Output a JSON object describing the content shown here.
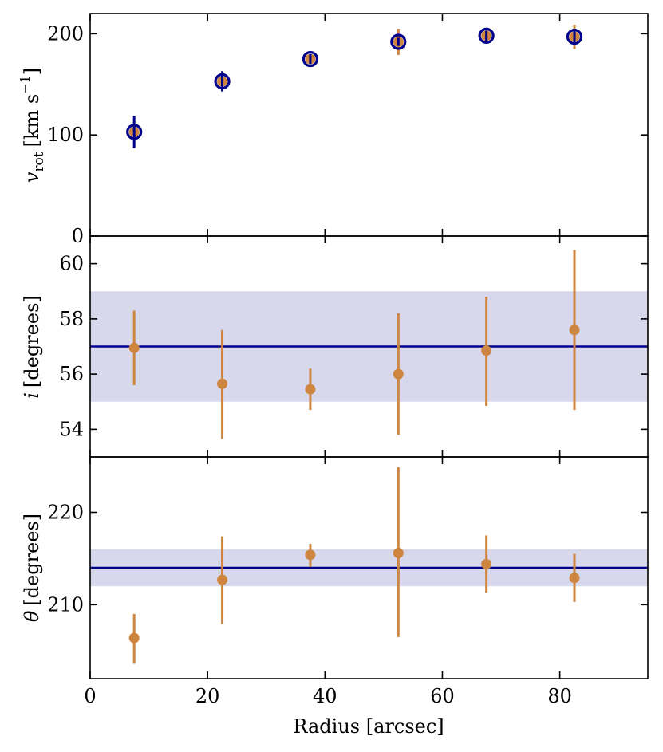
{
  "colors": {
    "model": "#00008b",
    "data": "#cd853f",
    "band": "#d8d8ec",
    "axes": "#000000"
  },
  "chart_data": [
    {
      "type": "scatter",
      "title": "",
      "ylabel": {
        "symbol": "v",
        "subscript": "rot",
        "units": "[km s",
        "superscript": "−1",
        "close": "]"
      },
      "xlim": [
        0,
        95
      ],
      "ylim": [
        0,
        220
      ],
      "yticks": [
        0,
        100,
        200
      ],
      "ytick_labels": [
        "0",
        "100",
        "200"
      ],
      "xticks": [
        0,
        20,
        40,
        60,
        80
      ],
      "grid": false,
      "series": [
        {
          "style": "filled-circle-errorbar",
          "color": "#cd853f",
          "points": [
            {
              "x": 7.5,
              "y": 103,
              "err": 10
            },
            {
              "x": 22.5,
              "y": 153,
              "err": 7
            },
            {
              "x": 37.5,
              "y": 175,
              "err": 4
            },
            {
              "x": 52.5,
              "y": 192,
              "err": 13
            },
            {
              "x": 67.5,
              "y": 198,
              "err": 6
            },
            {
              "x": 82.5,
              "y": 197,
              "err": 12
            }
          ]
        },
        {
          "style": "open-circle-errorbar",
          "color": "#00008b",
          "points": [
            {
              "x": 7.5,
              "y": 103,
              "err": 16
            },
            {
              "x": 22.5,
              "y": 153,
              "err": 10
            },
            {
              "x": 37.5,
              "y": 175,
              "err": 5
            },
            {
              "x": 52.5,
              "y": 192,
              "err": 4
            },
            {
              "x": 67.5,
              "y": 198,
              "err": 5
            },
            {
              "x": 82.5,
              "y": 197,
              "err": 8
            }
          ]
        }
      ]
    },
    {
      "type": "scatter",
      "title": "",
      "ylabel": {
        "symbol": "i",
        "units": "[degrees]"
      },
      "xlim": [
        0,
        95
      ],
      "ylim": [
        53,
        61
      ],
      "yticks": [
        54,
        56,
        58,
        60
      ],
      "ytick_labels": [
        "54",
        "56",
        "58",
        "60"
      ],
      "xticks": [
        0,
        20,
        40,
        60,
        80
      ],
      "grid": false,
      "reference_line": {
        "y": 57,
        "color": "#00008b"
      },
      "band": {
        "y_low": 55,
        "y_high": 59
      },
      "series": [
        {
          "style": "filled-circle-errorbar",
          "color": "#cd853f",
          "points": [
            {
              "x": 7.5,
              "y": 56.95,
              "lo": 55.6,
              "hi": 58.3
            },
            {
              "x": 22.5,
              "y": 55.65,
              "lo": 53.65,
              "hi": 57.6
            },
            {
              "x": 37.5,
              "y": 55.45,
              "lo": 54.7,
              "hi": 56.2
            },
            {
              "x": 52.5,
              "y": 56.0,
              "lo": 53.8,
              "hi": 58.2
            },
            {
              "x": 67.5,
              "y": 56.85,
              "lo": 54.85,
              "hi": 58.8
            },
            {
              "x": 82.5,
              "y": 57.6,
              "lo": 54.7,
              "hi": 60.5
            }
          ]
        }
      ]
    },
    {
      "type": "scatter",
      "title": "",
      "xlabel": "Radius [arcsec]",
      "ylabel": {
        "symbol": "θ",
        "units": "[degrees]"
      },
      "xlim": [
        0,
        95
      ],
      "ylim": [
        202,
        226
      ],
      "yticks": [
        210,
        220
      ],
      "ytick_labels": [
        "210",
        "220"
      ],
      "xticks": [
        0,
        20,
        40,
        60,
        80
      ],
      "xtick_labels": [
        "0",
        "20",
        "40",
        "60",
        "80"
      ],
      "grid": false,
      "reference_line": {
        "y": 214,
        "color": "#00008b"
      },
      "band": {
        "y_low": 212,
        "y_high": 216
      },
      "series": [
        {
          "style": "filled-circle-errorbar",
          "color": "#cd853f",
          "points": [
            {
              "x": 7.5,
              "y": 206.4,
              "lo": 203.6,
              "hi": 209.0
            },
            {
              "x": 22.5,
              "y": 212.7,
              "lo": 207.9,
              "hi": 217.4
            },
            {
              "x": 37.5,
              "y": 215.4,
              "lo": 214.1,
              "hi": 216.6
            },
            {
              "x": 52.5,
              "y": 215.6,
              "lo": 206.5,
              "hi": 224.9
            },
            {
              "x": 67.5,
              "y": 214.4,
              "lo": 211.3,
              "hi": 217.5
            },
            {
              "x": 82.5,
              "y": 212.9,
              "lo": 210.3,
              "hi": 215.5
            }
          ]
        }
      ]
    }
  ]
}
